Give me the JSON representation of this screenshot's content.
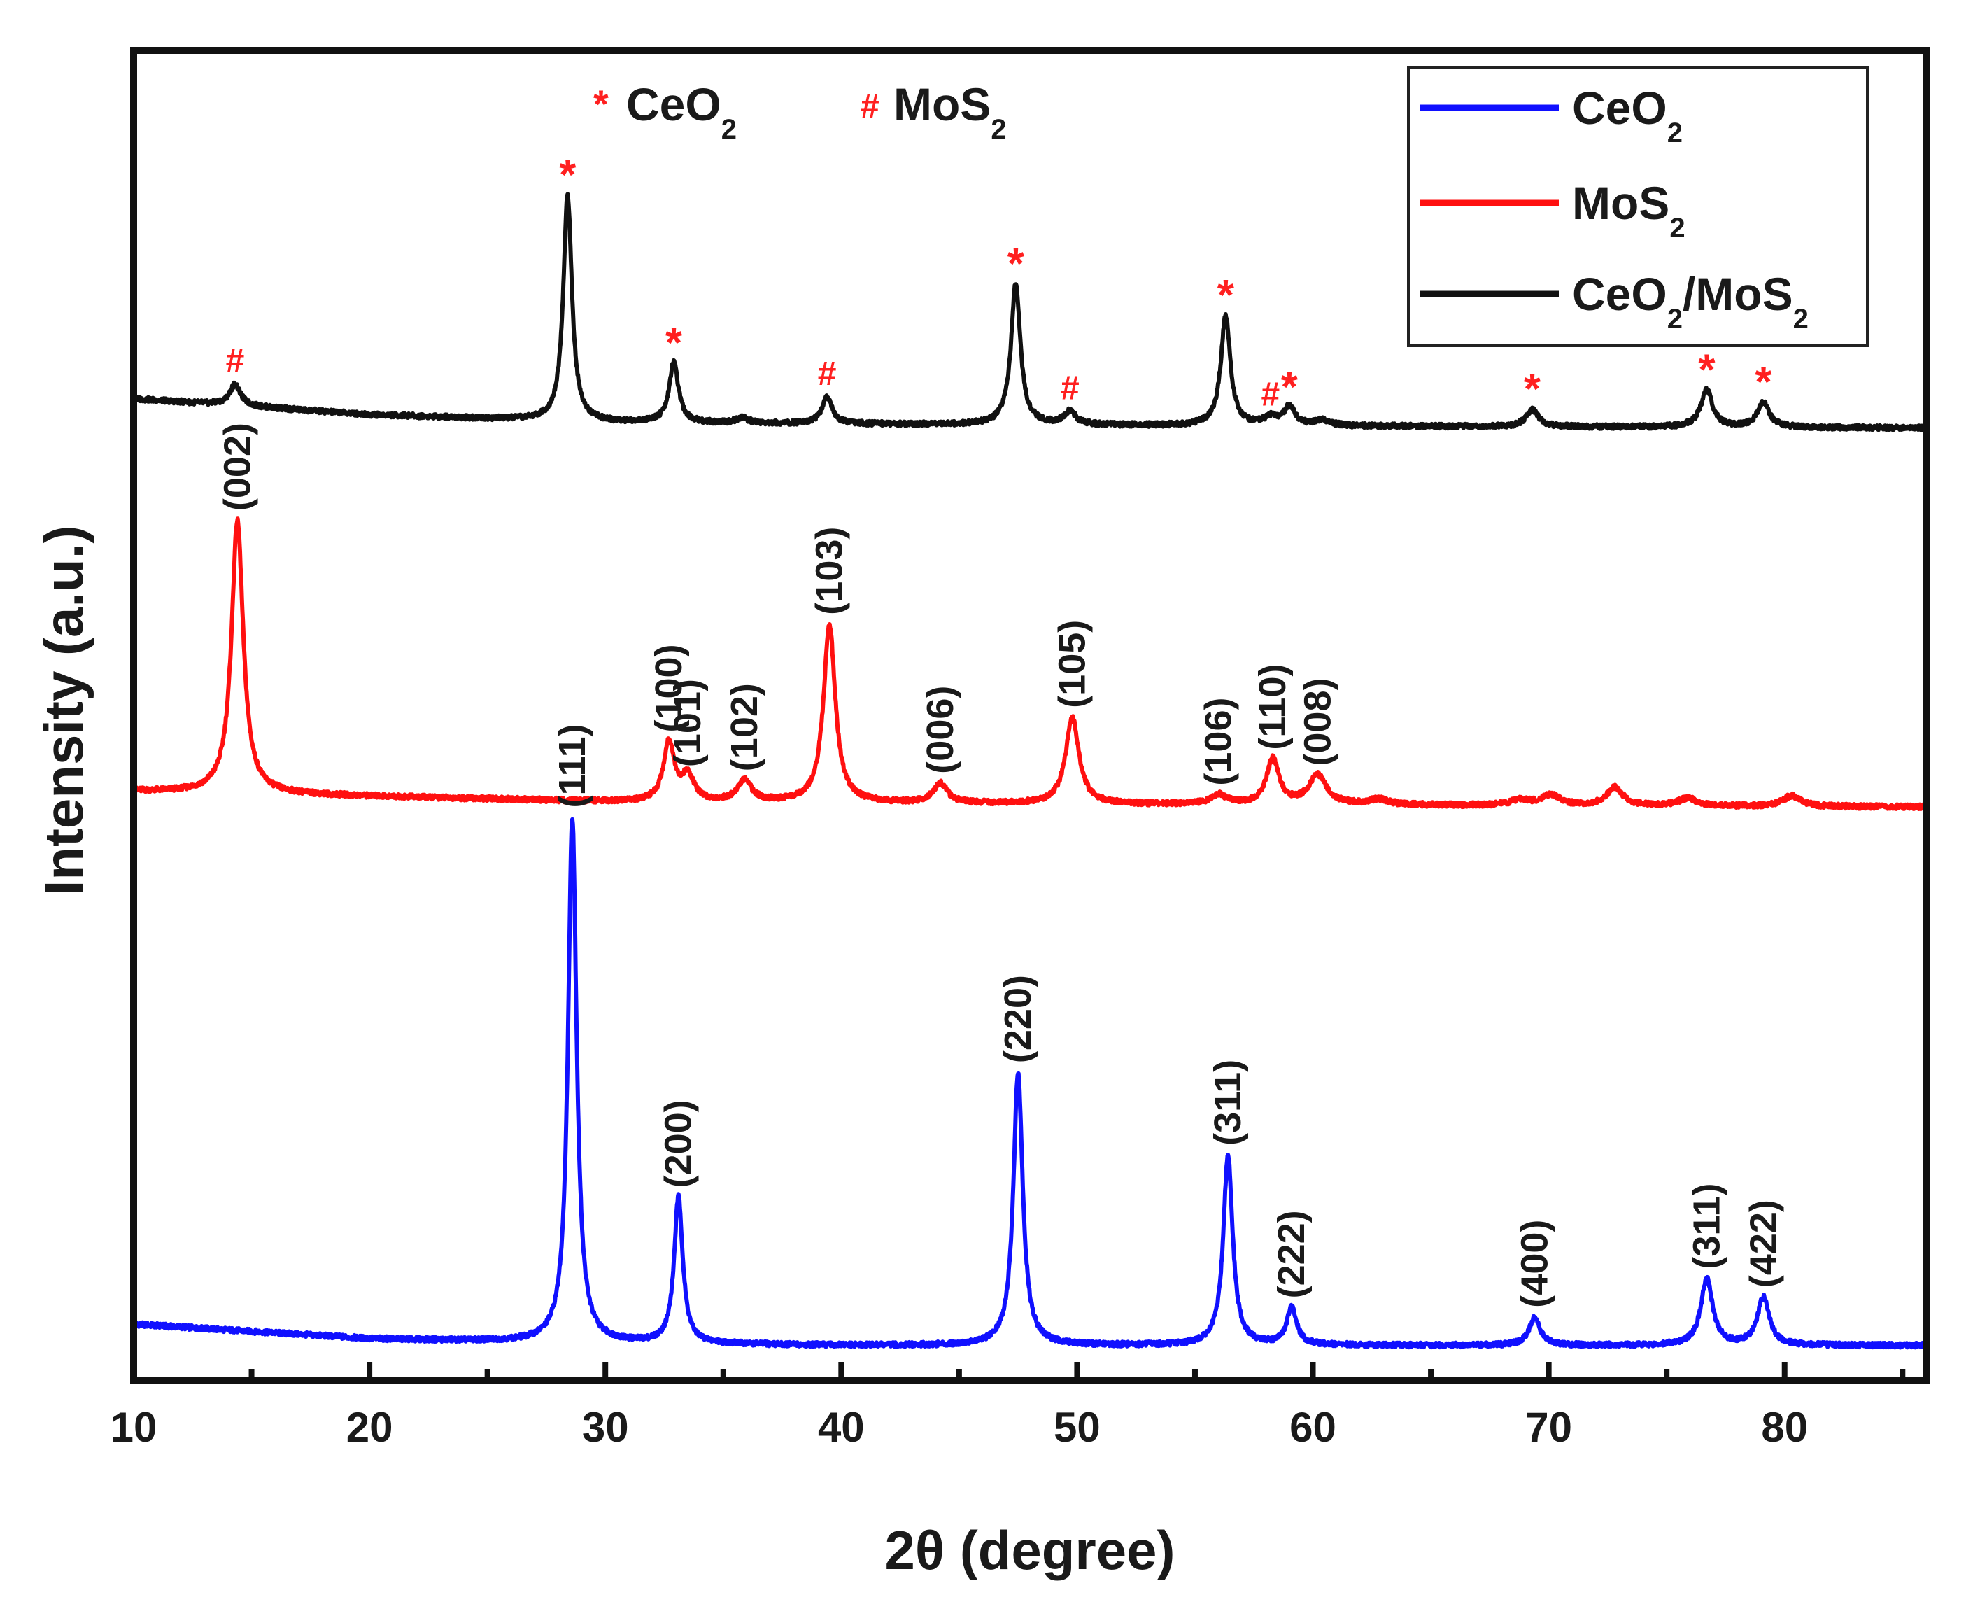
{
  "chart_data": {
    "type": "line",
    "title": "",
    "xlabel": "2θ (degree)",
    "ylabel": "Intensity (a.u.)",
    "xlim": [
      10,
      86
    ],
    "ylim": [
      0,
      100
    ],
    "xticks": [
      10,
      20,
      30,
      40,
      50,
      60,
      70,
      80
    ],
    "y_ticks_shown": false,
    "grid": false,
    "legend_position": "top-right",
    "legend": [
      {
        "label": "CeO",
        "sub": "2",
        "color": "#1010ff"
      },
      {
        "label": "MoS",
        "sub": "2",
        "color": "#ff1010"
      },
      {
        "label": "CeO",
        "sub": "2",
        "label2": "/MoS",
        "sub2": "2",
        "color": "#111111"
      }
    ],
    "phase_key": [
      {
        "symbol": "*",
        "label": "CeO",
        "sub": "2"
      },
      {
        "symbol": "#",
        "label": "MoS",
        "sub": "2"
      }
    ],
    "series": [
      {
        "name": "CeO2",
        "color": "#1010ff",
        "baseline": [
          [
            10,
            4.2
          ],
          [
            20,
            3.1
          ],
          [
            28,
            2.8
          ],
          [
            40,
            2.6
          ],
          [
            60,
            2.6
          ],
          [
            86,
            2.6
          ]
        ],
        "peaks": [
          {
            "x": 28.6,
            "height": 39.5,
            "width": 0.22,
            "label": "(111)"
          },
          {
            "x": 33.1,
            "height": 11,
            "width": 0.22,
            "label": "(200)"
          },
          {
            "x": 47.5,
            "height": 20.5,
            "width": 0.24,
            "label": "(220)"
          },
          {
            "x": 56.4,
            "height": 14.3,
            "width": 0.24,
            "label": "(311)"
          },
          {
            "x": 59.1,
            "height": 2.8,
            "width": 0.25,
            "label": "(222)"
          },
          {
            "x": 69.4,
            "height": 2.1,
            "width": 0.28,
            "label": "(400)"
          },
          {
            "x": 76.7,
            "height": 5.0,
            "width": 0.3,
            "label": "(311)"
          },
          {
            "x": 79.1,
            "height": 3.6,
            "width": 0.3,
            "label": "(422)"
          }
        ]
      },
      {
        "name": "MoS2",
        "color": "#ff1010",
        "baseline": [
          [
            10,
            44.3
          ],
          [
            20,
            43.9
          ],
          [
            30,
            43.5
          ],
          [
            50,
            43.3
          ],
          [
            86,
            43.1
          ]
        ],
        "peaks": [
          {
            "x": 14.4,
            "height": 20.5,
            "width": 0.3,
            "label": "(002)"
          },
          {
            "x": 32.7,
            "height": 4.5,
            "width": 0.28,
            "label": "(100)"
          },
          {
            "x": 33.5,
            "height": 1.9,
            "width": 0.3,
            "label": "(101)"
          },
          {
            "x": 35.9,
            "height": 1.6,
            "width": 0.35,
            "label": "(102)"
          },
          {
            "x": 39.5,
            "height": 13.4,
            "width": 0.3,
            "label": "(103)"
          },
          {
            "x": 44.2,
            "height": 1.5,
            "width": 0.35,
            "label": "(006)"
          },
          {
            "x": 49.8,
            "height": 6.5,
            "width": 0.34,
            "label": "(105)"
          },
          {
            "x": 56.0,
            "height": 0.7,
            "width": 0.4,
            "label": "(106)"
          },
          {
            "x": 58.3,
            "height": 3.4,
            "width": 0.32,
            "label": "(110)"
          },
          {
            "x": 60.2,
            "height": 2.2,
            "width": 0.45,
            "label": "(008)"
          },
          {
            "x": 62.8,
            "height": 0.4,
            "width": 0.5,
            "label": ""
          },
          {
            "x": 68.8,
            "height": 0.4,
            "width": 0.5,
            "label": ""
          },
          {
            "x": 70.1,
            "height": 0.8,
            "width": 0.45,
            "label": ""
          },
          {
            "x": 72.8,
            "height": 1.4,
            "width": 0.4,
            "label": ""
          },
          {
            "x": 75.9,
            "height": 0.6,
            "width": 0.45,
            "label": ""
          },
          {
            "x": 80.3,
            "height": 0.8,
            "width": 0.45,
            "label": ""
          }
        ]
      },
      {
        "name": "CeO2/MoS2",
        "color": "#111111",
        "baseline": [
          [
            10,
            73.8
          ],
          [
            20,
            72.6
          ],
          [
            30,
            72.0
          ],
          [
            50,
            71.8
          ],
          [
            86,
            71.6
          ]
        ],
        "peaks": [
          {
            "x": 14.3,
            "height": 1.6,
            "width": 0.28,
            "label": "#"
          },
          {
            "x": 28.4,
            "height": 17.0,
            "width": 0.22,
            "label": "*"
          },
          {
            "x": 32.9,
            "height": 4.5,
            "width": 0.24,
            "label": "*"
          },
          {
            "x": 35.8,
            "height": 0.4,
            "width": 0.3,
            "label": ""
          },
          {
            "x": 39.4,
            "height": 2.0,
            "width": 0.26,
            "label": "#"
          },
          {
            "x": 47.4,
            "height": 10.6,
            "width": 0.24,
            "label": "*"
          },
          {
            "x": 49.7,
            "height": 1.0,
            "width": 0.3,
            "label": "#"
          },
          {
            "x": 56.3,
            "height": 8.3,
            "width": 0.24,
            "label": "*"
          },
          {
            "x": 58.2,
            "height": 0.6,
            "width": 0.3,
            "label": "#"
          },
          {
            "x": 59.0,
            "height": 1.4,
            "width": 0.28,
            "label": "*"
          },
          {
            "x": 60.4,
            "height": 0.4,
            "width": 0.4,
            "label": ""
          },
          {
            "x": 69.3,
            "height": 1.3,
            "width": 0.3,
            "label": "*"
          },
          {
            "x": 76.7,
            "height": 2.8,
            "width": 0.3,
            "label": "*"
          },
          {
            "x": 79.1,
            "height": 1.9,
            "width": 0.3,
            "label": "*"
          }
        ]
      }
    ]
  }
}
